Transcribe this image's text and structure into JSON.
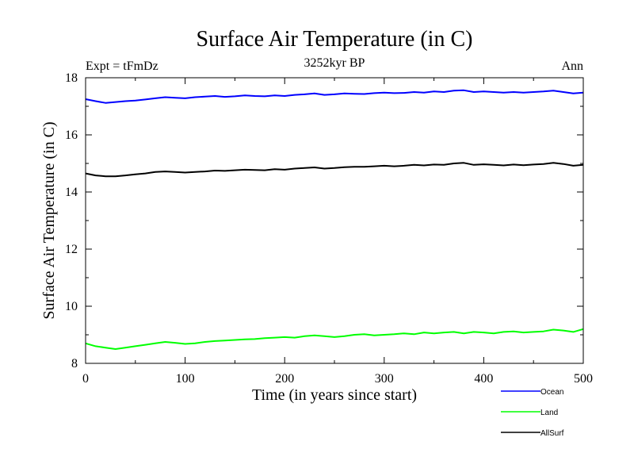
{
  "chart_data": {
    "type": "line",
    "title": "Surface Air Temperature (in C)",
    "subtitle": "3252kyr BP",
    "left_label": "Expt = tFmDz",
    "right_label": "Ann",
    "xlabel": "Time (in years since start)",
    "ylabel": "Surface Air Temperature (in C)",
    "xlim": [
      0,
      500
    ],
    "ylim": [
      8,
      18
    ],
    "x_ticks": [
      0,
      100,
      200,
      300,
      400,
      500
    ],
    "y_ticks": [
      8,
      10,
      12,
      14,
      16,
      18
    ],
    "grid": false,
    "legend_position": "bottom-right",
    "series": [
      {
        "name": "Ocean",
        "color": "#0000ff",
        "x_start": 0,
        "x_step": 10,
        "values": [
          17.25,
          17.18,
          17.12,
          17.15,
          17.18,
          17.2,
          17.24,
          17.28,
          17.32,
          17.3,
          17.28,
          17.32,
          17.34,
          17.36,
          17.33,
          17.35,
          17.38,
          17.36,
          17.35,
          17.38,
          17.36,
          17.4,
          17.42,
          17.45,
          17.4,
          17.42,
          17.45,
          17.44,
          17.43,
          17.46,
          17.48,
          17.46,
          17.47,
          17.5,
          17.48,
          17.52,
          17.5,
          17.55,
          17.56,
          17.5,
          17.52,
          17.5,
          17.48,
          17.5,
          17.48,
          17.5,
          17.52,
          17.55,
          17.5,
          17.45,
          17.48
        ]
      },
      {
        "name": "Land",
        "color": "#00ff00",
        "x_start": 0,
        "x_step": 10,
        "values": [
          8.7,
          8.6,
          8.55,
          8.5,
          8.55,
          8.6,
          8.65,
          8.7,
          8.75,
          8.72,
          8.68,
          8.7,
          8.75,
          8.78,
          8.8,
          8.82,
          8.84,
          8.85,
          8.88,
          8.9,
          8.92,
          8.9,
          8.95,
          8.98,
          8.95,
          8.92,
          8.95,
          9.0,
          9.02,
          8.98,
          9.0,
          9.02,
          9.05,
          9.02,
          9.08,
          9.05,
          9.08,
          9.1,
          9.05,
          9.1,
          9.08,
          9.05,
          9.1,
          9.12,
          9.08,
          9.1,
          9.12,
          9.18,
          9.15,
          9.1,
          9.2
        ]
      },
      {
        "name": "AllSurf",
        "color": "#000000",
        "x_start": 0,
        "x_step": 10,
        "values": [
          14.65,
          14.58,
          14.55,
          14.55,
          14.58,
          14.62,
          14.65,
          14.7,
          14.72,
          14.7,
          14.68,
          14.7,
          14.72,
          14.75,
          14.74,
          14.76,
          14.78,
          14.77,
          14.76,
          14.8,
          14.78,
          14.82,
          14.84,
          14.86,
          14.82,
          14.84,
          14.87,
          14.88,
          14.88,
          14.9,
          14.92,
          14.9,
          14.92,
          14.95,
          14.93,
          14.96,
          14.95,
          15.0,
          15.02,
          14.95,
          14.97,
          14.95,
          14.93,
          14.96,
          14.94,
          14.96,
          14.98,
          15.02,
          14.98,
          14.92,
          14.95
        ]
      }
    ]
  }
}
